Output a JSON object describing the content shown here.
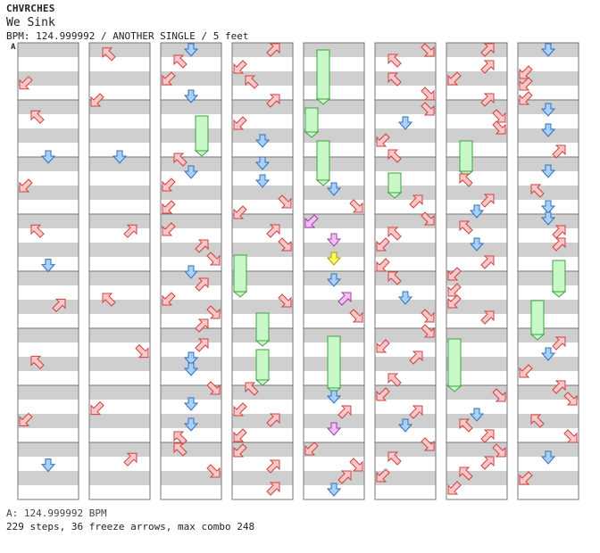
{
  "header": {
    "artist": "CHVRCHES",
    "title": "We Sink",
    "meta": "BPM: 124.999992 / ANOTHER SINGLE / 5 feet",
    "section_label": "A"
  },
  "footer": {
    "bpm_line": "A: 124.999992 BPM",
    "stats_line": "229 steps, 36 freeze arrows, max combo 248"
  },
  "colors": {
    "diagonal_arrow": "#f8c8c8",
    "diagonal_outline": "#d04040",
    "center_arrow": "#a8d0f8",
    "center_outline": "#3070c0",
    "purple_arrow": "#f4c0f4",
    "yellow_arrow": "#ffff60",
    "freeze_body": "#c8f8c8",
    "freeze_outline": "#40a040",
    "stripe": "#cfcfcf"
  },
  "chart_data": {
    "type": "step-chart",
    "lanes": [
      "down-left",
      "up-left",
      "center",
      "up-right",
      "down-right"
    ],
    "columns": [
      {
        "index": 1,
        "notes": [
          {
            "row": 0.7,
            "lane": 0
          },
          {
            "row": 1.3,
            "lane": 1
          },
          {
            "row": 2.0,
            "lane": 2
          },
          {
            "row": 2.5,
            "lane": 0
          },
          {
            "row": 3.3,
            "lane": 1
          },
          {
            "row": 3.9,
            "lane": 2
          },
          {
            "row": 4.6,
            "lane": 3
          },
          {
            "row": 5.6,
            "lane": 1
          },
          {
            "row": 6.6,
            "lane": 0
          },
          {
            "row": 7.4,
            "lane": 2
          }
        ]
      },
      {
        "index": 2,
        "notes": [
          {
            "row": 0.2,
            "lane": 1
          },
          {
            "row": 1.0,
            "lane": 0
          },
          {
            "row": 2.0,
            "lane": 2
          },
          {
            "row": 3.3,
            "lane": 3
          },
          {
            "row": 4.5,
            "lane": 1
          },
          {
            "row": 5.4,
            "lane": 4
          },
          {
            "row": 6.4,
            "lane": 0
          },
          {
            "row": 7.3,
            "lane": 3
          }
        ]
      }
    ]
  }
}
